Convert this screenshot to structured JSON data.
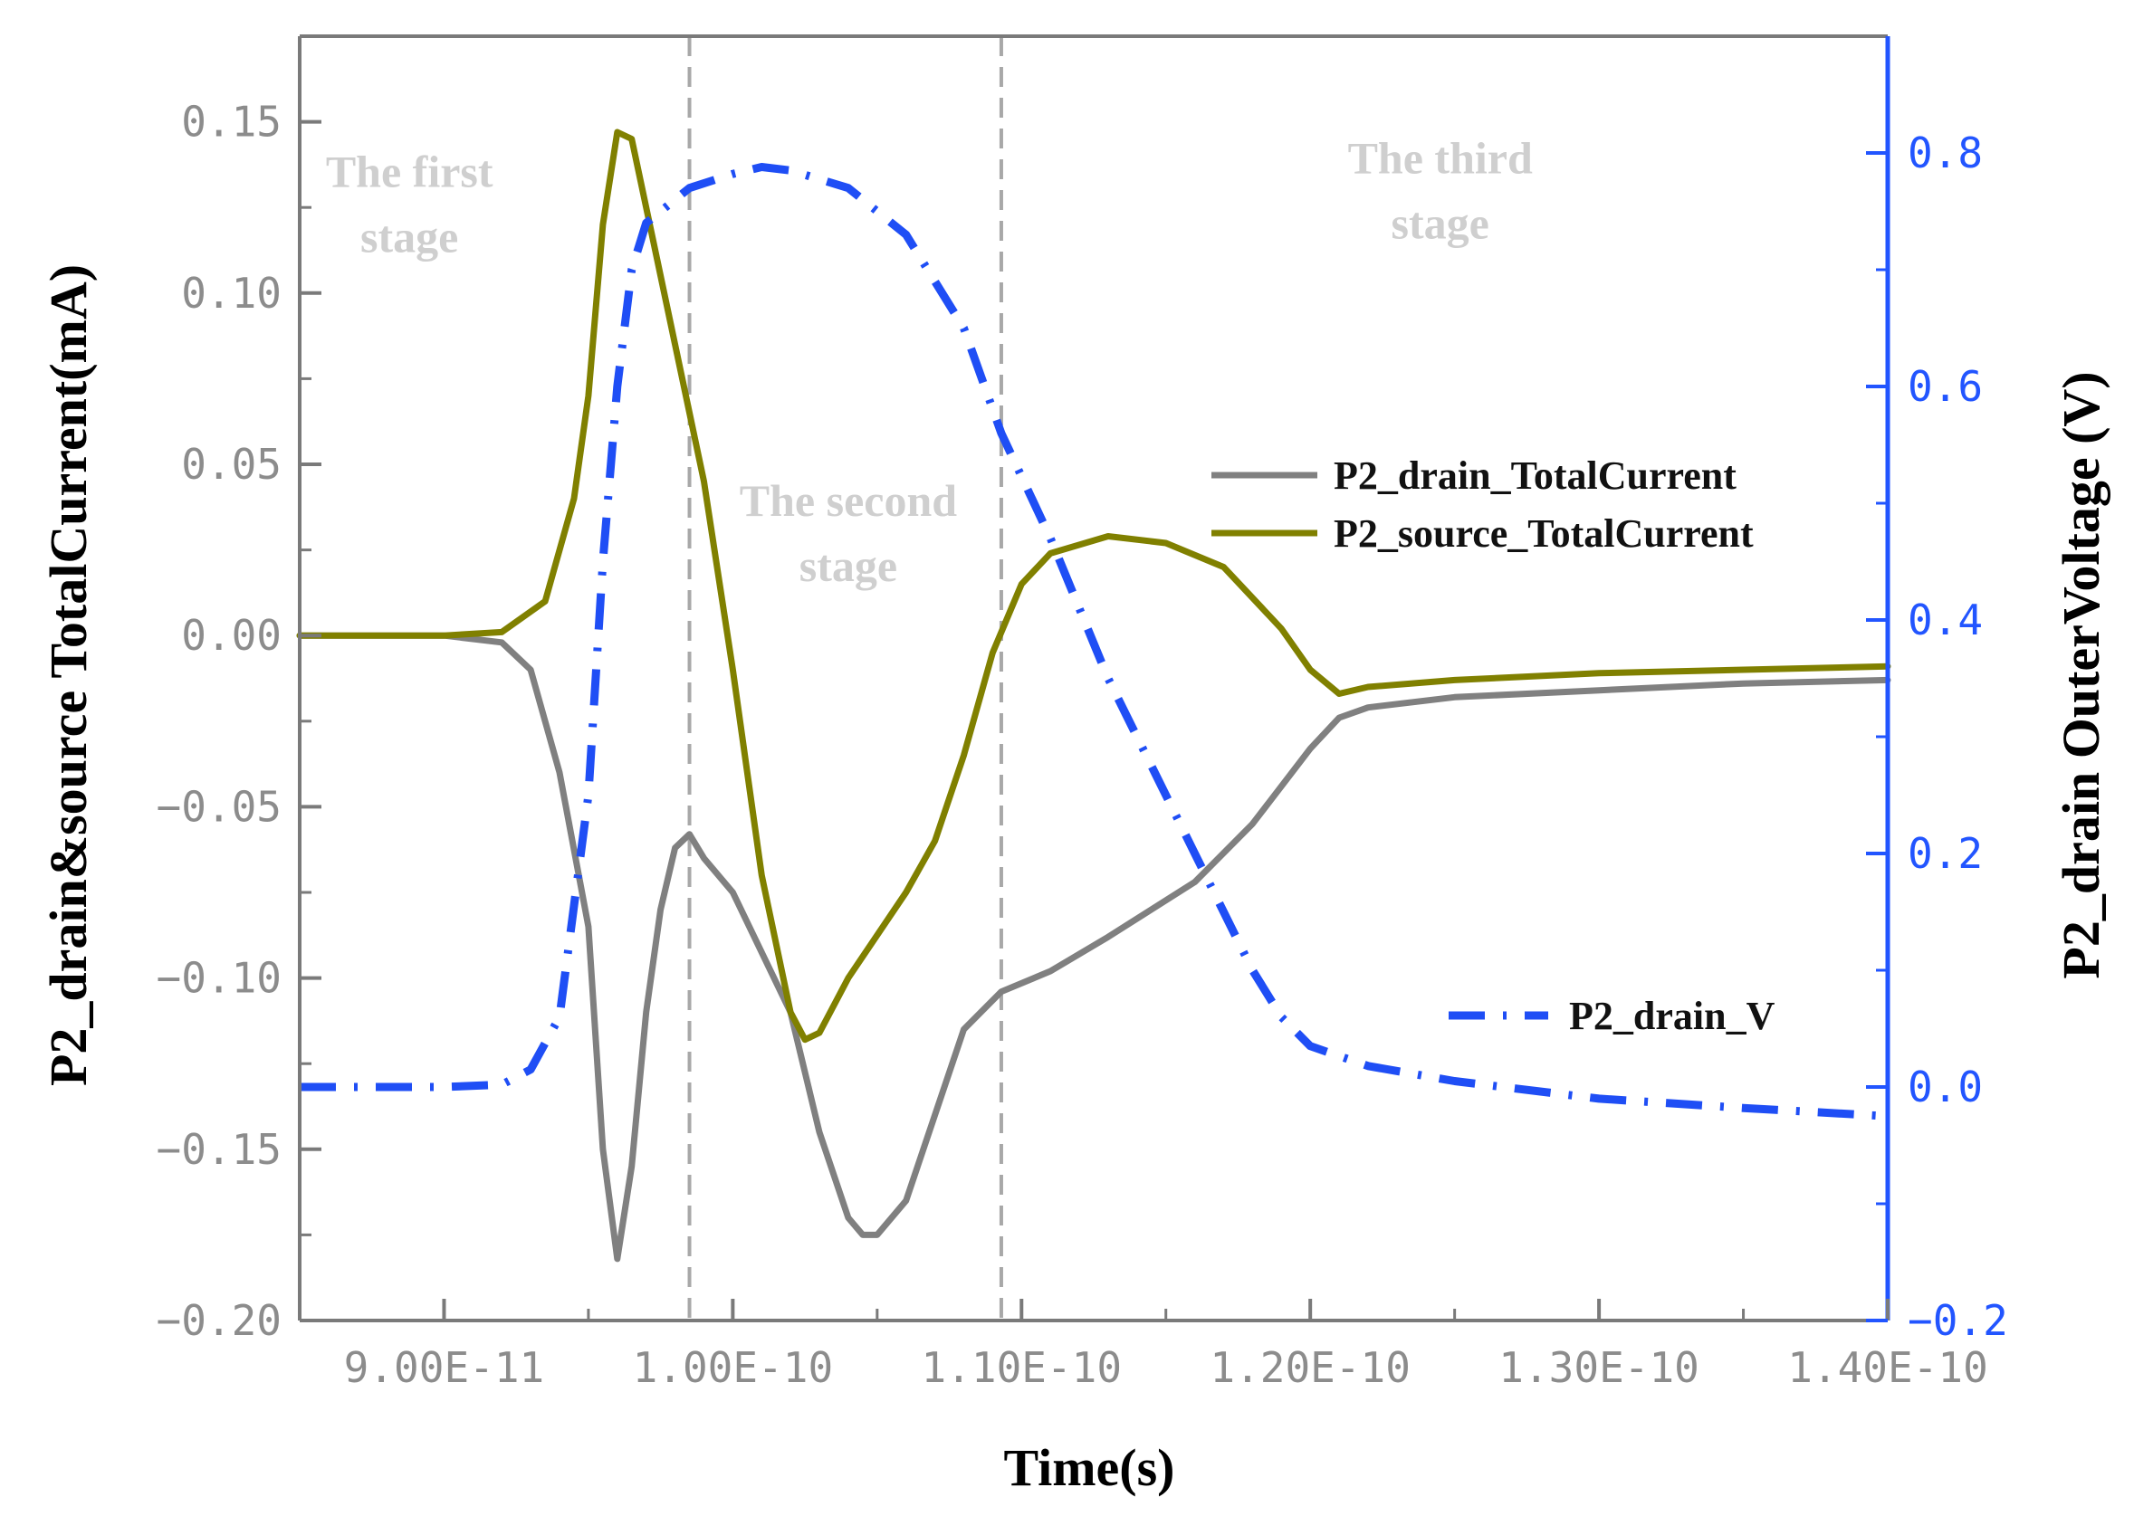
{
  "chart_data": {
    "type": "line",
    "x_label": "Time(s)",
    "y_left_label": "P2_drain&source TotalCurrent(mA)",
    "y_right_label": "P2_drain OuterVoltage (V)",
    "x_range": [
      8.5e-11,
      1.4e-10
    ],
    "y_left_range": [
      -0.2,
      0.175
    ],
    "y_right_range": [
      -0.2,
      0.9
    ],
    "x_ticks": [
      {
        "value": 9e-11,
        "label": "9.00E-11"
      },
      {
        "value": 1e-10,
        "label": "1.00E-10"
      },
      {
        "value": 1.1e-10,
        "label": "1.10E-10"
      },
      {
        "value": 1.2e-10,
        "label": "1.20E-10"
      },
      {
        "value": 1.3e-10,
        "label": "1.30E-10"
      },
      {
        "value": 1.4e-10,
        "label": "1.40E-10"
      }
    ],
    "y_left_ticks": [
      {
        "value": 0.15,
        "label": "0.15"
      },
      {
        "value": 0.1,
        "label": "0.10"
      },
      {
        "value": 0.05,
        "label": "0.05"
      },
      {
        "value": 0.0,
        "label": "0.00"
      },
      {
        "value": -0.05,
        "label": "−0.05"
      },
      {
        "value": -0.1,
        "label": "−0.10"
      },
      {
        "value": -0.15,
        "label": "−0.15"
      },
      {
        "value": -0.2,
        "label": "−0.20"
      }
    ],
    "y_right_ticks": [
      {
        "value": 0.8,
        "label": "0.8"
      },
      {
        "value": 0.6,
        "label": "0.6"
      },
      {
        "value": 0.4,
        "label": "0.4"
      },
      {
        "value": 0.2,
        "label": "0.2"
      },
      {
        "value": 0.0,
        "label": "0.0"
      },
      {
        "value": -0.2,
        "label": "−0.2"
      }
    ],
    "stage_boundaries": [
      9.85e-11,
      1.093e-10
    ],
    "stage_labels": [
      {
        "lines": [
          "The first",
          "stage"
        ],
        "x": 8.88e-11,
        "y_left": 0.131
      },
      {
        "lines": [
          "The second",
          "stage"
        ],
        "x": 1.04e-10,
        "y_left": 0.035
      },
      {
        "lines": [
          "The third",
          "stage"
        ],
        "x": 1.245e-10,
        "y_left": 0.135
      }
    ],
    "series": [
      {
        "name": "P2_drain_TotalCurrent",
        "axis": "left",
        "color": "#808080",
        "style": "solid",
        "points": [
          [
            8.5e-11,
            0.0
          ],
          [
            9e-11,
            0.0
          ],
          [
            9.2e-11,
            -0.002
          ],
          [
            9.3e-11,
            -0.01
          ],
          [
            9.4e-11,
            -0.04
          ],
          [
            9.5e-11,
            -0.085
          ],
          [
            9.55e-11,
            -0.15
          ],
          [
            9.6e-11,
            -0.182
          ],
          [
            9.65e-11,
            -0.155
          ],
          [
            9.7e-11,
            -0.11
          ],
          [
            9.75e-11,
            -0.08
          ],
          [
            9.8e-11,
            -0.062
          ],
          [
            9.85e-11,
            -0.058
          ],
          [
            9.9e-11,
            -0.065
          ],
          [
            1e-10,
            -0.075
          ],
          [
            1.02e-10,
            -0.11
          ],
          [
            1.03e-10,
            -0.145
          ],
          [
            1.04e-10,
            -0.17
          ],
          [
            1.045e-10,
            -0.175
          ],
          [
            1.05e-10,
            -0.175
          ],
          [
            1.06e-10,
            -0.165
          ],
          [
            1.07e-10,
            -0.14
          ],
          [
            1.08e-10,
            -0.115
          ],
          [
            1.093e-10,
            -0.104
          ],
          [
            1.11e-10,
            -0.098
          ],
          [
            1.13e-10,
            -0.088
          ],
          [
            1.16e-10,
            -0.072
          ],
          [
            1.18e-10,
            -0.055
          ],
          [
            1.2e-10,
            -0.033
          ],
          [
            1.21e-10,
            -0.024
          ],
          [
            1.22e-10,
            -0.021
          ],
          [
            1.25e-10,
            -0.018
          ],
          [
            1.3e-10,
            -0.016
          ],
          [
            1.35e-10,
            -0.014
          ],
          [
            1.4e-10,
            -0.013
          ]
        ]
      },
      {
        "name": "P2_source_TotalCurrent",
        "axis": "left",
        "color": "#808000",
        "style": "solid",
        "points": [
          [
            8.5e-11,
            0.0
          ],
          [
            9e-11,
            0.0
          ],
          [
            9.2e-11,
            0.001
          ],
          [
            9.35e-11,
            0.01
          ],
          [
            9.45e-11,
            0.04
          ],
          [
            9.5e-11,
            0.07
          ],
          [
            9.55e-11,
            0.12
          ],
          [
            9.6e-11,
            0.147
          ],
          [
            9.65e-11,
            0.145
          ],
          [
            9.7e-11,
            0.125
          ],
          [
            9.8e-11,
            0.085
          ],
          [
            9.9e-11,
            0.045
          ],
          [
            1e-10,
            -0.01
          ],
          [
            1.01e-10,
            -0.07
          ],
          [
            1.02e-10,
            -0.11
          ],
          [
            1.025e-10,
            -0.118
          ],
          [
            1.03e-10,
            -0.116
          ],
          [
            1.04e-10,
            -0.1
          ],
          [
            1.06e-10,
            -0.075
          ],
          [
            1.07e-10,
            -0.06
          ],
          [
            1.08e-10,
            -0.035
          ],
          [
            1.09e-10,
            -0.005
          ],
          [
            1.1e-10,
            0.015
          ],
          [
            1.11e-10,
            0.024
          ],
          [
            1.13e-10,
            0.029
          ],
          [
            1.15e-10,
            0.027
          ],
          [
            1.17e-10,
            0.02
          ],
          [
            1.19e-10,
            0.002
          ],
          [
            1.2e-10,
            -0.01
          ],
          [
            1.21e-10,
            -0.017
          ],
          [
            1.22e-10,
            -0.015
          ],
          [
            1.25e-10,
            -0.013
          ],
          [
            1.3e-10,
            -0.011
          ],
          [
            1.35e-10,
            -0.01
          ],
          [
            1.4e-10,
            -0.009
          ]
        ]
      },
      {
        "name": "P2_drain_V",
        "axis": "right",
        "color": "#1f4ef5",
        "style": "dashdot",
        "points": [
          [
            8.5e-11,
            0.0
          ],
          [
            9e-11,
            0.0
          ],
          [
            9.2e-11,
            0.002
          ],
          [
            9.3e-11,
            0.015
          ],
          [
            9.4e-11,
            0.06
          ],
          [
            9.5e-11,
            0.25
          ],
          [
            9.55e-11,
            0.45
          ],
          [
            9.6e-11,
            0.6
          ],
          [
            9.65e-11,
            0.7
          ],
          [
            9.7e-11,
            0.74
          ],
          [
            9.8e-11,
            0.76
          ],
          [
            9.85e-11,
            0.77
          ],
          [
            1e-10,
            0.782
          ],
          [
            1.01e-10,
            0.788
          ],
          [
            1.02e-10,
            0.785
          ],
          [
            1.04e-10,
            0.77
          ],
          [
            1.06e-10,
            0.73
          ],
          [
            1.08e-10,
            0.65
          ],
          [
            1.093e-10,
            0.56
          ],
          [
            1.11e-10,
            0.47
          ],
          [
            1.13e-10,
            0.35
          ],
          [
            1.16e-10,
            0.2
          ],
          [
            1.18e-10,
            0.1
          ],
          [
            1.19e-10,
            0.06
          ],
          [
            1.2e-10,
            0.035
          ],
          [
            1.22e-10,
            0.018
          ],
          [
            1.25e-10,
            0.005
          ],
          [
            1.3e-10,
            -0.01
          ],
          [
            1.35e-10,
            -0.018
          ],
          [
            1.4e-10,
            -0.025
          ]
        ]
      }
    ],
    "legend": [
      {
        "name": "P2_drain_TotalCurrent",
        "color": "#808080",
        "style": "solid"
      },
      {
        "name": "P2_source_TotalCurrent",
        "color": "#808000",
        "style": "solid"
      },
      {
        "name": "P2_drain_V",
        "color": "#1f4ef5",
        "style": "dashdot"
      }
    ]
  }
}
